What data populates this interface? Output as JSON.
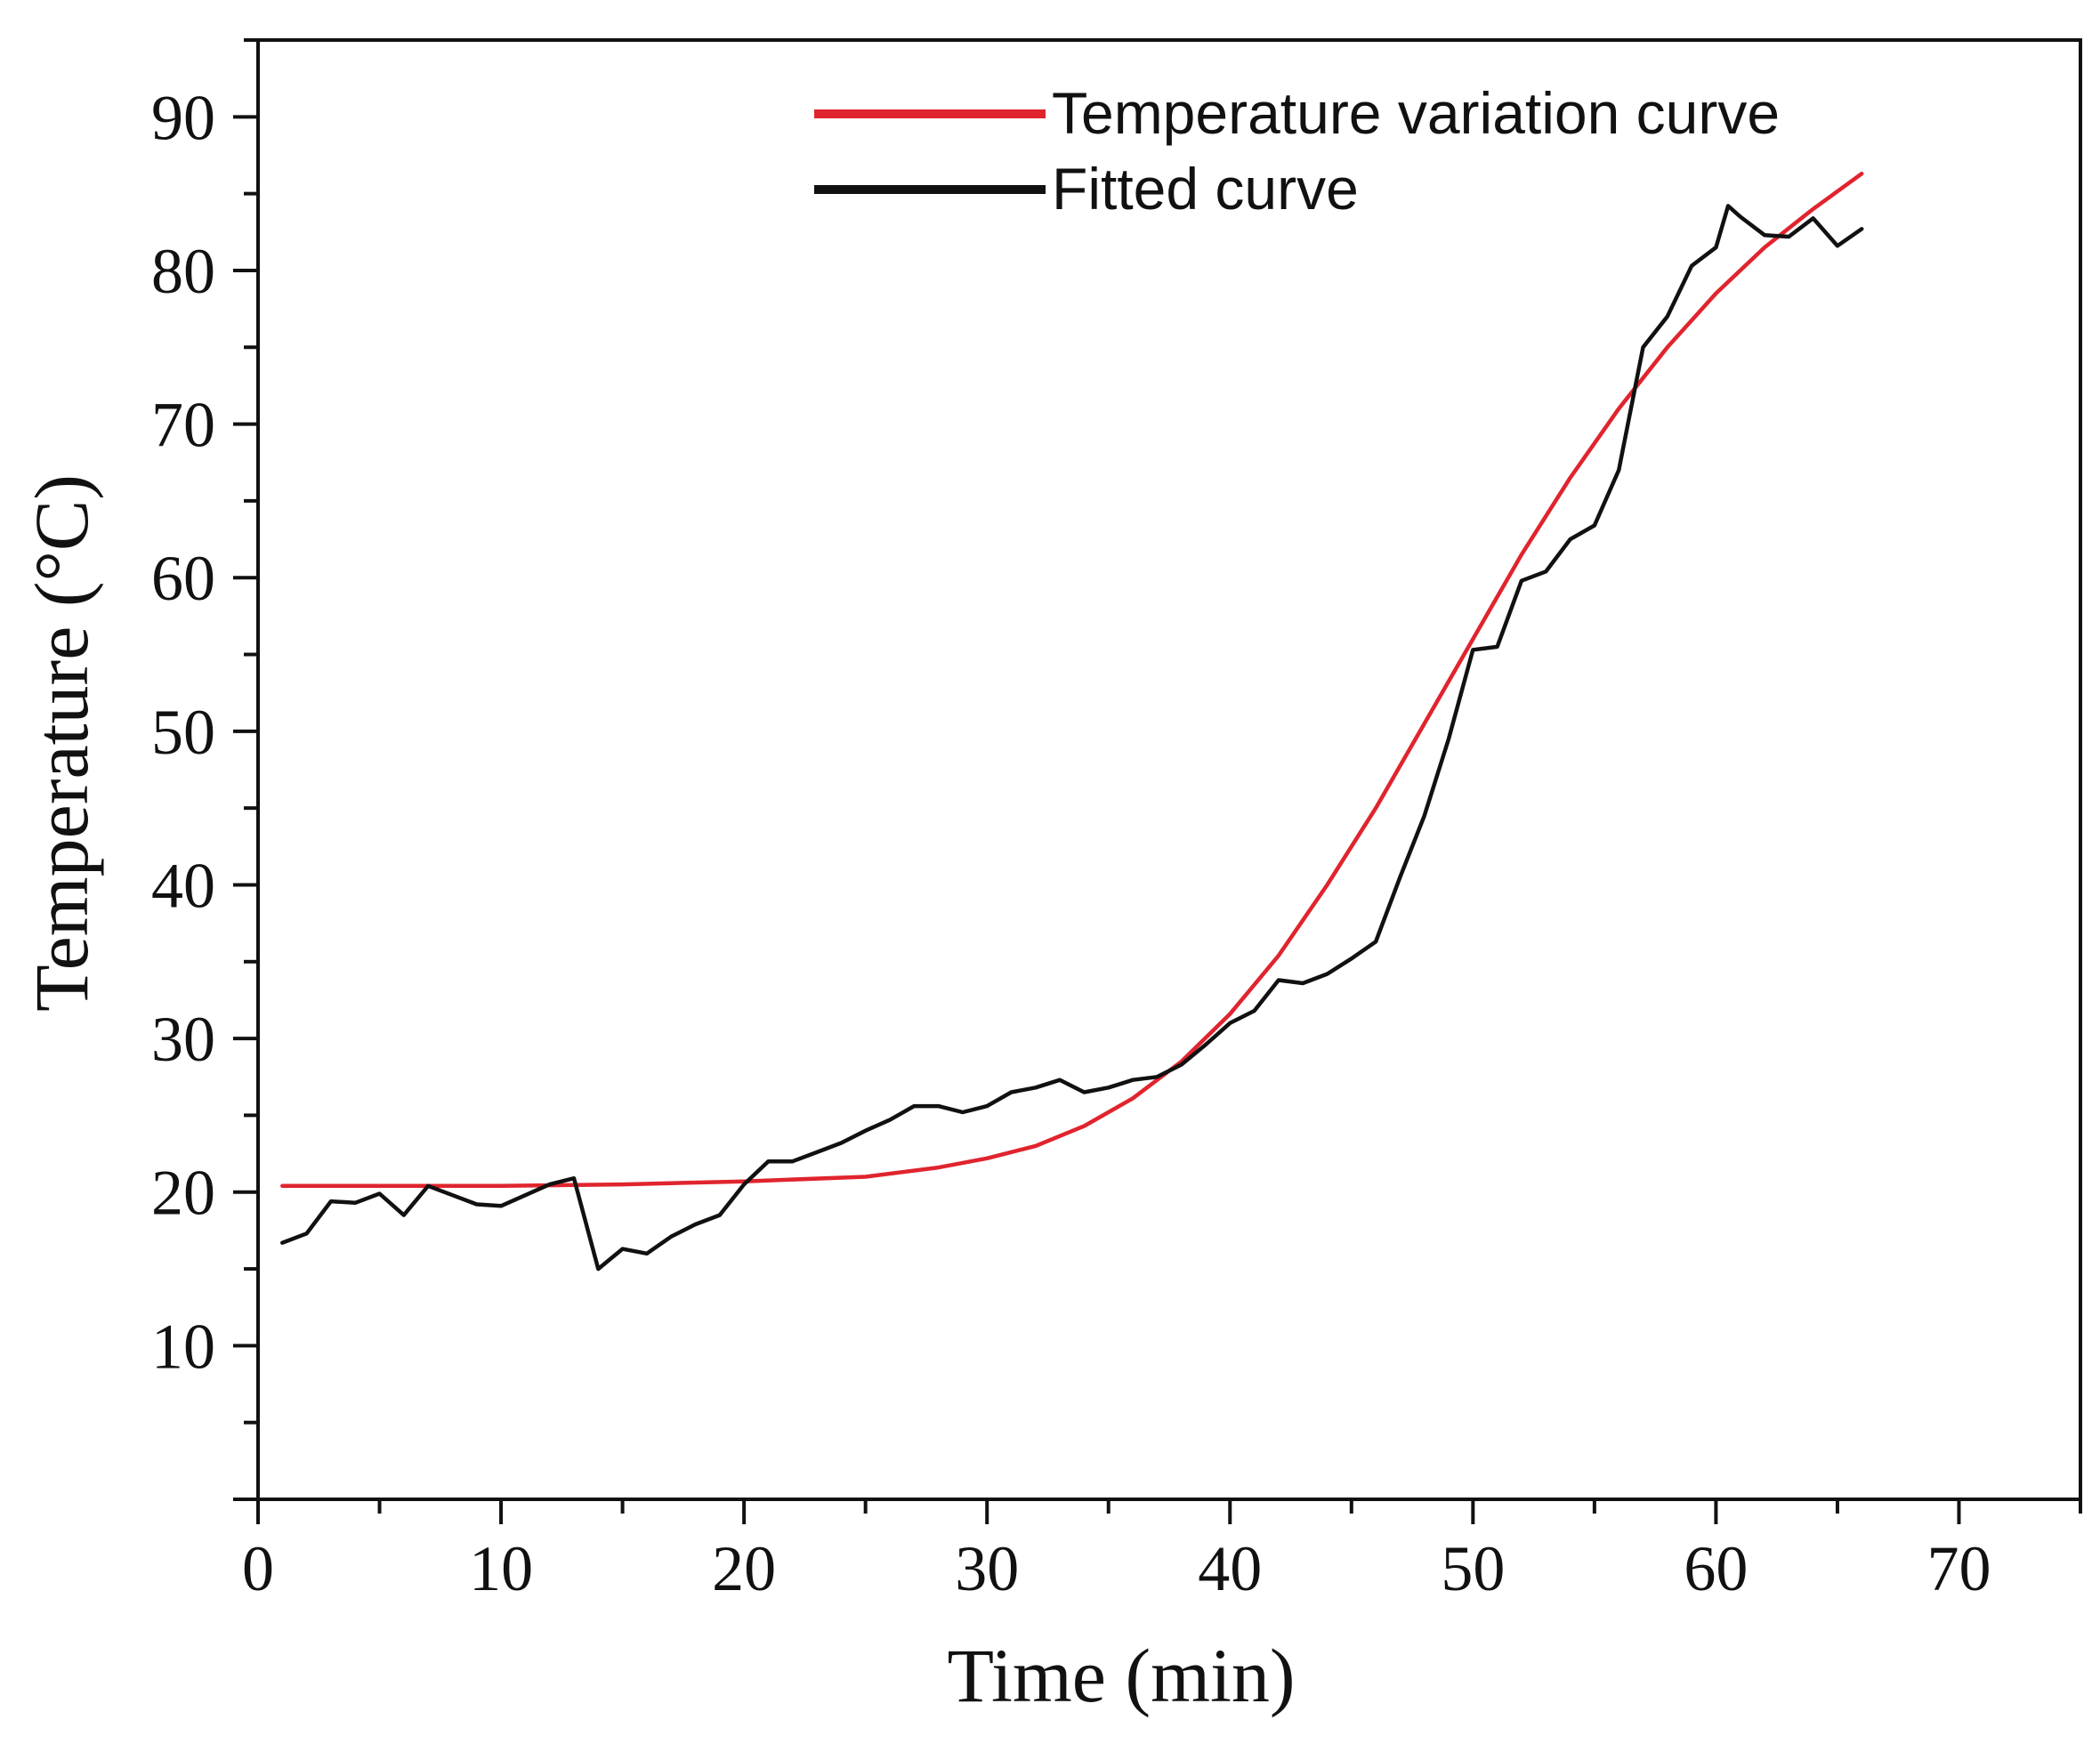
{
  "chart_data": {
    "type": "line",
    "xlabel": "Time  (min)",
    "ylabel": "Temperature  (°C)",
    "xlim": [
      0,
      75
    ],
    "ylim": [
      0,
      95
    ],
    "xticks": [
      0,
      10,
      20,
      30,
      40,
      50,
      60,
      70
    ],
    "yticks": [
      10,
      20,
      30,
      40,
      50,
      60,
      70,
      80,
      90
    ],
    "xtick_labels": [
      "0",
      "10",
      "20",
      "30",
      "40",
      "50",
      "60",
      "70"
    ],
    "ytick_labels": [
      "10",
      "20",
      "30",
      "40",
      "50",
      "60",
      "70",
      "80",
      "90"
    ],
    "legend_position": "top-right",
    "series": [
      {
        "name": "Temperature variation curve",
        "color": "#e0242e",
        "x": [
          1,
          5,
          10,
          15,
          20,
          25,
          28,
          30,
          32,
          34,
          36,
          38,
          40,
          42,
          44,
          46,
          48,
          50,
          52,
          54,
          56,
          58,
          60,
          62,
          64,
          66
        ],
        "y": [
          20.4,
          20.4,
          20.4,
          20.5,
          20.7,
          21.0,
          21.6,
          22.2,
          23.0,
          24.3,
          26.1,
          28.5,
          31.6,
          35.4,
          40.0,
          45.0,
          50.5,
          56.0,
          61.5,
          66.5,
          71.0,
          75.0,
          78.5,
          81.5,
          84.0,
          86.3
        ]
      },
      {
        "name": "Fitted curve",
        "color": "#111111",
        "x": [
          1,
          2,
          3,
          4,
          5,
          6,
          7,
          8,
          9,
          10,
          11,
          12,
          13,
          14,
          15,
          16,
          17,
          18,
          19,
          20,
          21,
          22,
          23,
          24,
          25,
          26,
          27,
          28,
          29,
          30,
          31,
          32,
          33,
          34,
          35,
          36,
          37,
          38,
          39,
          40,
          41,
          42,
          43,
          44,
          45,
          46,
          47,
          48,
          49,
          50,
          51,
          52,
          53,
          54,
          55,
          56,
          57,
          58,
          59,
          60,
          60.5,
          61,
          62,
          63,
          64,
          65,
          66
        ],
        "y": [
          16.7,
          17.3,
          19.4,
          19.3,
          19.9,
          18.5,
          20.4,
          19.8,
          19.2,
          19.1,
          19.8,
          20.5,
          20.9,
          15.0,
          16.3,
          16.0,
          17.1,
          17.9,
          18.5,
          20.5,
          22.0,
          22.0,
          22.6,
          23.2,
          24.0,
          24.7,
          25.6,
          25.6,
          25.2,
          25.6,
          26.5,
          26.8,
          27.3,
          26.5,
          26.8,
          27.3,
          27.5,
          28.3,
          29.6,
          31.0,
          31.8,
          33.8,
          33.6,
          34.2,
          35.2,
          36.3,
          40.5,
          44.5,
          49.5,
          55.3,
          55.5,
          59.8,
          60.4,
          62.5,
          63.4,
          67.0,
          75.0,
          77.0,
          80.3,
          81.5,
          84.2,
          83.5,
          82.3,
          82.2,
          83.4,
          81.6,
          82.7
        ]
      }
    ]
  }
}
